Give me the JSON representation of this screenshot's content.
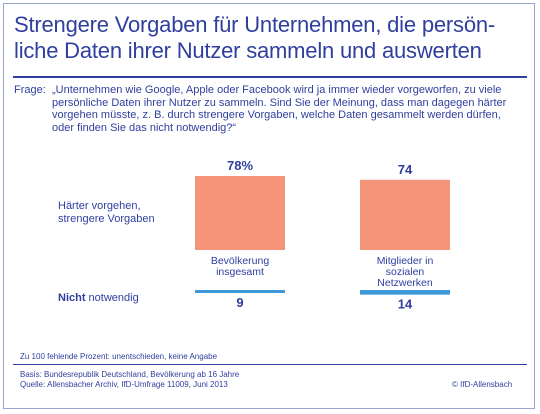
{
  "title": "Strengere Vorgaben für Unternehmen, die persön-\nliche Daten ihrer Nutzer sammeln und auswerten",
  "question": {
    "label": "Frage:",
    "text": "„Unternehmen wie Google, Apple oder Facebook wird ja immer wieder vorgeworfen, zu viele persönliche Daten ihrer Nutzer zu sammeln. Sind Sie der Meinung, dass man dagegen härter vorgehen müsste, z. B. durch strengere Vorgaben, welche Daten gesammelt werden dürfen, oder finden Sie das nicht notwendig?“"
  },
  "row_labels": {
    "harder_line1": "Härter vorgehen,",
    "harder_line2": "strengere Vorgaben",
    "not_bold": "Nicht",
    "not_rest": " notwendig"
  },
  "colors": {
    "harder": "#f4957a",
    "not_necessary": "#3d9ad8",
    "text": "#2f3f9e"
  },
  "chart_data": {
    "type": "bar",
    "categories": [
      "Bevölkerung insgesamt",
      "Mitglieder in sozialen Netzwerken"
    ],
    "category_lines": [
      [
        "Bevölkerung",
        "insgesamt"
      ],
      [
        "Mitglieder in",
        "sozialen",
        "Netzwerken"
      ]
    ],
    "series": [
      {
        "name": "Härter vorgehen, strengere Vorgaben",
        "values": [
          78,
          74
        ],
        "labels": [
          "78%",
          "74"
        ]
      },
      {
        "name": "Nicht notwendig",
        "values": [
          9,
          14
        ],
        "labels": [
          "9",
          "14"
        ]
      }
    ],
    "unit": "%"
  },
  "footnote": "Zu 100 fehlende Prozent: unentschieden, keine Angabe",
  "basis": "Basis: Bundesrepublik Deutschland, Bevölkerung ab 16 Jahre",
  "source": "Quelle: Allensbacher Archiv, IfD-Umfrage 11009, Juni 2013",
  "copyright": "© IfD-Allensbach"
}
